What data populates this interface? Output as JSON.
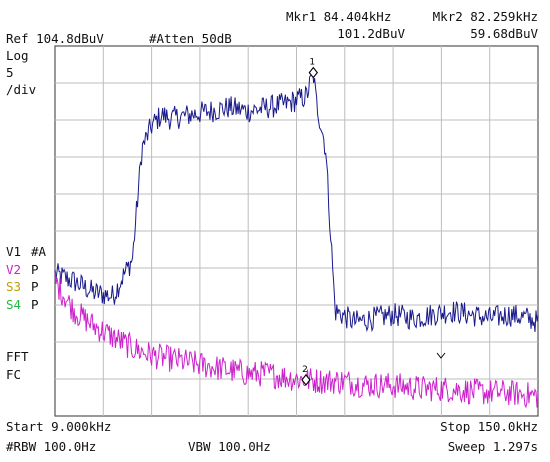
{
  "header": {
    "ref_level": "Ref 104.8dBuV",
    "atten": "#Atten 50dB",
    "mkr1_freq": "Mkr1 84.404kHz",
    "mkr1_level": "101.2dBuV",
    "mkr2_freq": "Mkr2 82.259kHz",
    "mkr2_level": "59.68dBuV"
  },
  "scale": {
    "mode": "Log",
    "value": "5",
    "unit": "/div"
  },
  "trace_labels": [
    {
      "label": "V1",
      "flag": "#A",
      "color": "#1a1a8c"
    },
    {
      "label": "V2",
      "flag": "P",
      "color": "#cc22cc"
    },
    {
      "label": "S3",
      "flag": "P",
      "color": "#b8a000"
    },
    {
      "label": "S4",
      "flag": "P",
      "color": "#22bb44"
    }
  ],
  "bottom_left_labels": [
    "FFT",
    "FC"
  ],
  "footer": {
    "start": "Start 9.000kHz",
    "stop": "Stop 150.0kHz",
    "rbw": "#RBW 100.0Hz",
    "vbw": "VBW 100.0Hz",
    "sweep": "Sweep 1.297s"
  },
  "chart_data": {
    "type": "line",
    "x_unit": "kHz",
    "y_unit": "dBuV",
    "xlim": [
      9.0,
      150.0
    ],
    "ylim": [
      54.8,
      104.8
    ],
    "grid": true,
    "series": [
      {
        "color": "#1a1a8c",
        "x": [
          9.0,
          14.6,
          20.3,
          25.9,
          28.7,
          31.6,
          34.4,
          37.2,
          40.1,
          42.9,
          48.5,
          54.2,
          59.8,
          65.5,
          71.1,
          76.7,
          82.4,
          84.4,
          85.2,
          88.0,
          90.8,
          96.5,
          102.1,
          107.8,
          113.4,
          119.0,
          124.7,
          130.3,
          136.0,
          141.6,
          147.2,
          150.0
        ],
        "y": [
          74.0,
          73.0,
          71.5,
          71.0,
          73.5,
          76.0,
          91.0,
          94.0,
          95.5,
          95.0,
          95.5,
          96.0,
          96.5,
          96.0,
          96.5,
          97.0,
          98.0,
          101.2,
          97.5,
          91.0,
          69.0,
          67.5,
          68.0,
          68.5,
          68.0,
          68.5,
          69.0,
          68.5,
          68.0,
          68.5,
          68.0,
          67.5
        ]
      },
      {
        "color": "#cc22cc",
        "x": [
          9.0,
          14.6,
          20.3,
          25.9,
          31.6,
          37.2,
          42.9,
          48.5,
          54.2,
          59.8,
          65.5,
          71.1,
          76.7,
          82.3,
          88.0,
          93.6,
          99.3,
          104.9,
          110.6,
          116.2,
          121.8,
          127.5,
          133.1,
          138.8,
          144.4,
          150.0
        ],
        "y": [
          73.0,
          69.0,
          67.0,
          65.5,
          64.0,
          63.0,
          62.5,
          62.0,
          61.5,
          61.0,
          60.5,
          60.5,
          60.0,
          59.7,
          59.5,
          59.5,
          59.0,
          59.0,
          58.8,
          58.5,
          58.5,
          58.3,
          58.0,
          58.0,
          57.8,
          57.5
        ]
      }
    ],
    "markers": [
      {
        "label": "1",
        "x": 84.404,
        "y": 101.2
      },
      {
        "label": "2",
        "x": 82.259,
        "y": 59.68
      }
    ]
  }
}
